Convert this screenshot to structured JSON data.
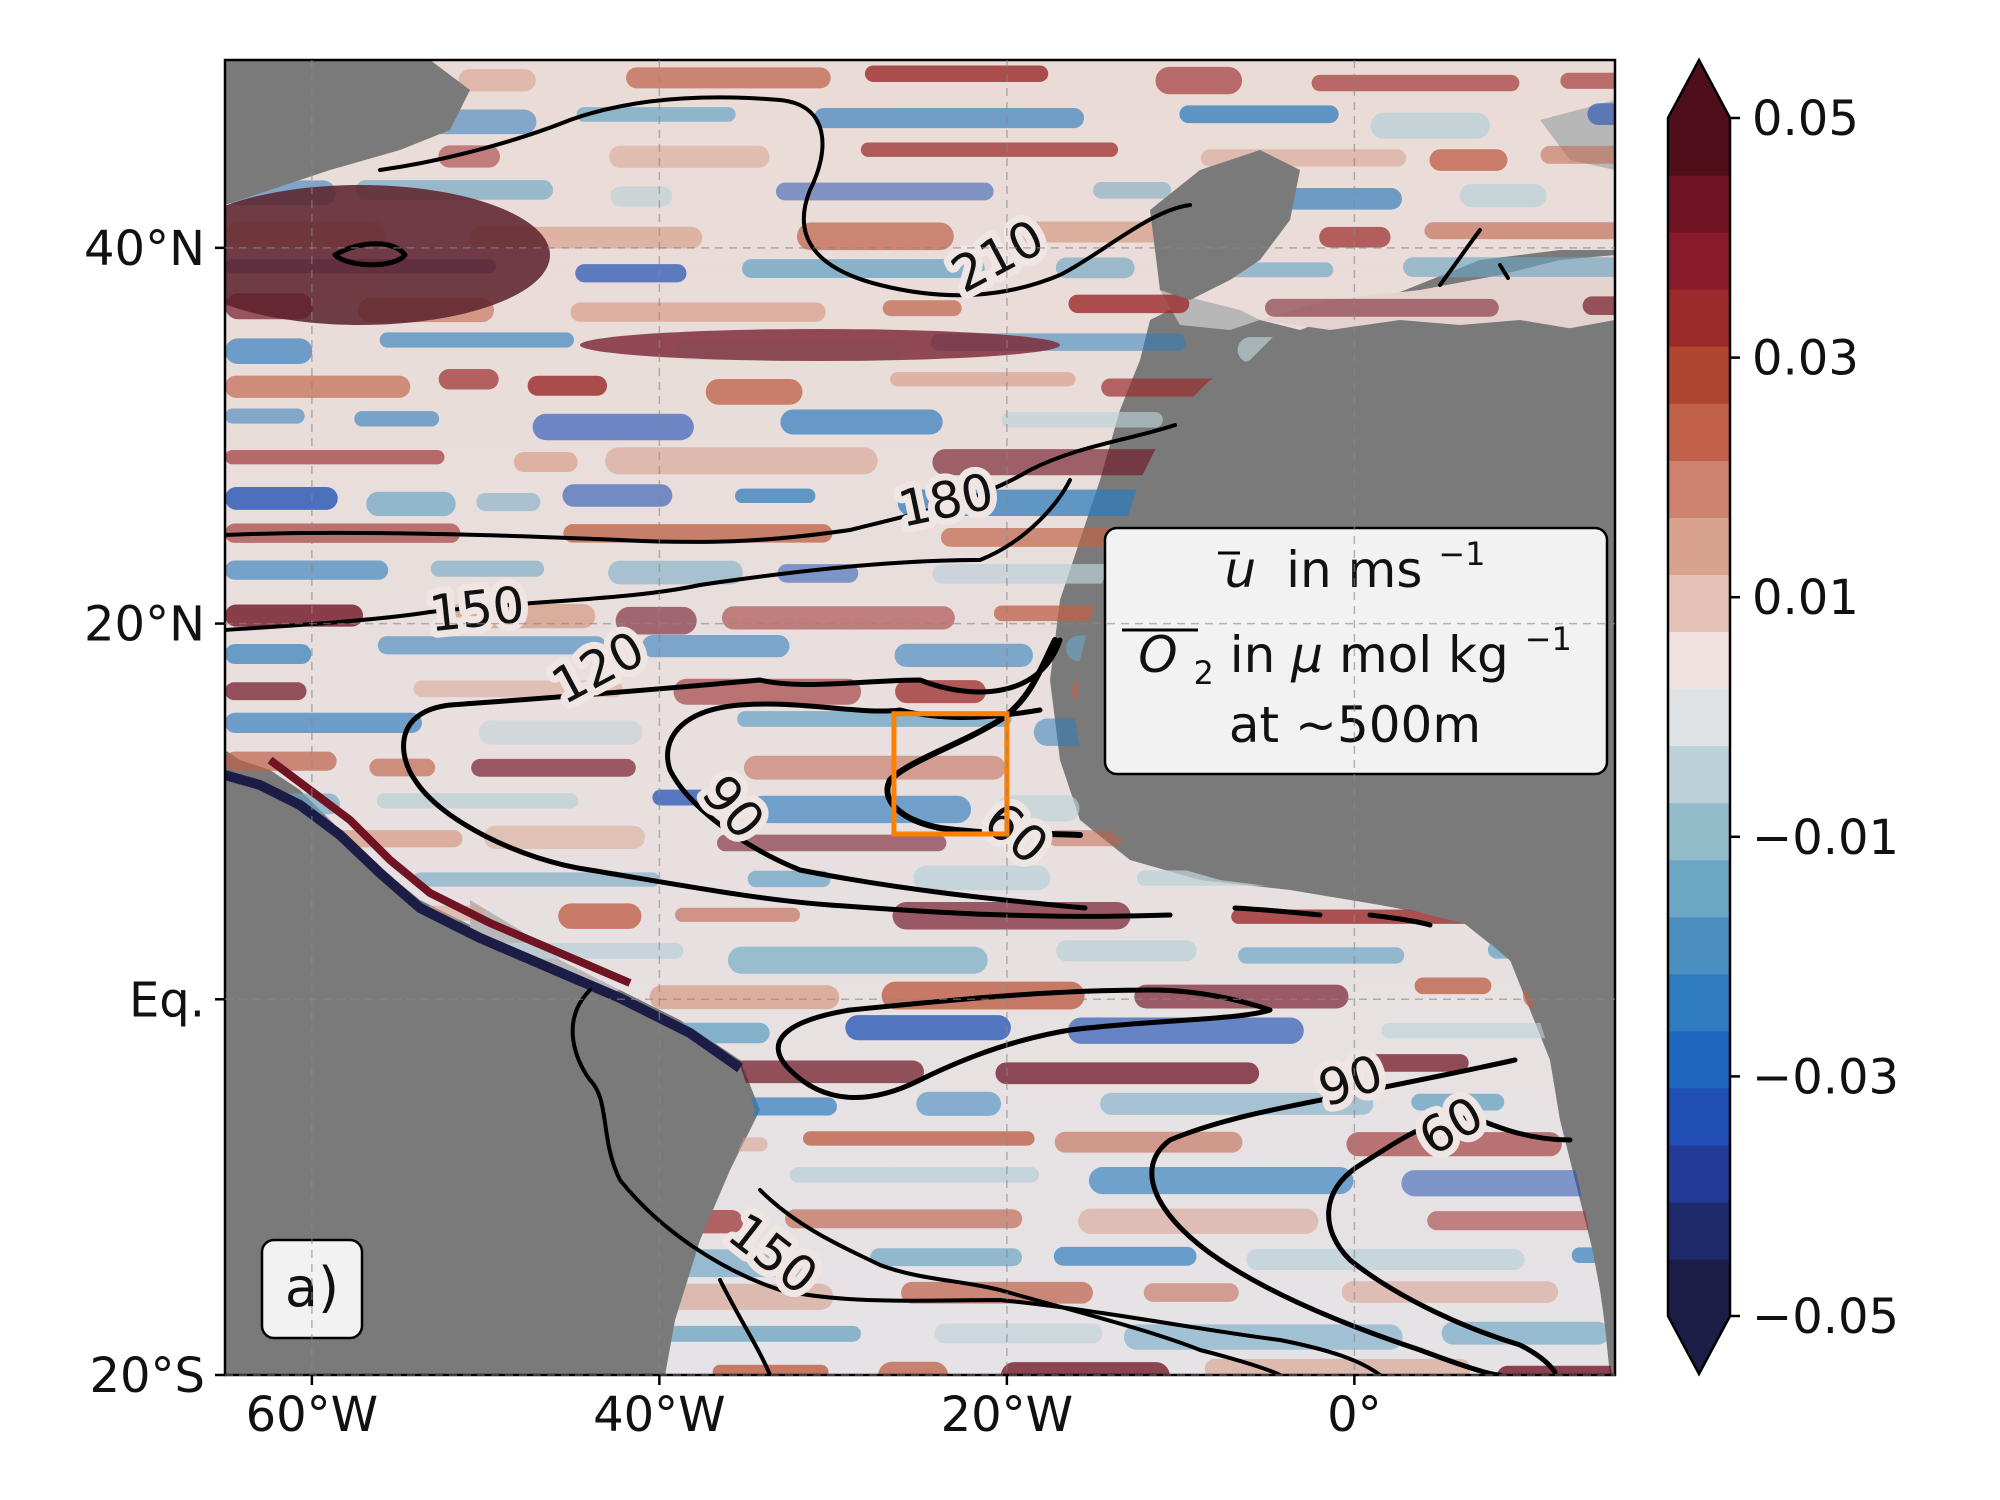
{
  "figure": {
    "panel_label": "a)",
    "legend": {
      "line1_var": "u",
      "line1_units": "in ms",
      "line1_exp": "−1",
      "line2_var": "O",
      "line2_sub": "2",
      "line2_units": " in ",
      "line2_mu": "μ",
      "line2_units2": "mol kg",
      "line2_exp": "−1",
      "line3": "at ~500m"
    },
    "region_box_color": "#ff8000"
  },
  "map": {
    "projection": "PlateCarree",
    "lon_range": [
      -65,
      15
    ],
    "lat_range": [
      -20,
      50
    ],
    "x_ticks": [
      {
        "lon": -60,
        "label": "60°W"
      },
      {
        "lon": -40,
        "label": "40°W"
      },
      {
        "lon": -20,
        "label": "20°W"
      },
      {
        "lon": 0,
        "label": "0°"
      }
    ],
    "y_ticks": [
      {
        "lat": 40,
        "label": "40°N"
      },
      {
        "lat": 20,
        "label": "20°N"
      },
      {
        "lat": 0,
        "label": "Eq."
      },
      {
        "lat": -20,
        "label": "20°S"
      }
    ],
    "highlight_box": {
      "lon_min": -26.5,
      "lon_max": -20,
      "lat_min": 8.8,
      "lat_max": 15.2
    },
    "contour_labels": [
      {
        "text": "210",
        "lon": -20.5,
        "lat": 39.5,
        "angle": -28
      },
      {
        "text": "180",
        "lon": -23.5,
        "lat": 26.5,
        "angle": -12
      },
      {
        "text": "150",
        "lon": -50.5,
        "lat": 20.7,
        "angle": -6
      },
      {
        "text": "120",
        "lon": -43.5,
        "lat": 17.6,
        "angle": -28
      },
      {
        "text": "90",
        "lon": -35.8,
        "lat": 10.2,
        "angle": 50
      },
      {
        "text": "60",
        "lon": -19.5,
        "lat": 8.8,
        "angle": 40
      },
      {
        "text": "90",
        "lon": -0.2,
        "lat": -4.4,
        "angle": -18
      },
      {
        "text": "60",
        "lon": 5.6,
        "lat": -6.8,
        "angle": -30
      },
      {
        "text": "150",
        "lon": -33.5,
        "lat": -13.6,
        "angle": 38
      }
    ]
  },
  "colorbar": {
    "colormap": "balance",
    "range": [
      -0.05,
      0.05
    ],
    "extend": "both",
    "tick_labels": [
      "0.05",
      "0.03",
      "0.01",
      "−0.01",
      "−0.03",
      "−0.05"
    ],
    "tick_values": [
      0.05,
      0.03,
      0.01,
      -0.01,
      -0.03,
      -0.05
    ],
    "colors": [
      "#1b1d47",
      "#1f2a6b",
      "#233b96",
      "#2050b3",
      "#1f66bf",
      "#2e7cbd",
      "#4a8fbf",
      "#6da6c5",
      "#93bccb",
      "#bcd1d8",
      "#dfe3e6",
      "#efe2de",
      "#e5c3b6",
      "#d8a28f",
      "#cc826d",
      "#bf6249",
      "#b04632",
      "#9b2b2b",
      "#881a2a",
      "#701424",
      "#4f0f1a"
    ]
  }
}
